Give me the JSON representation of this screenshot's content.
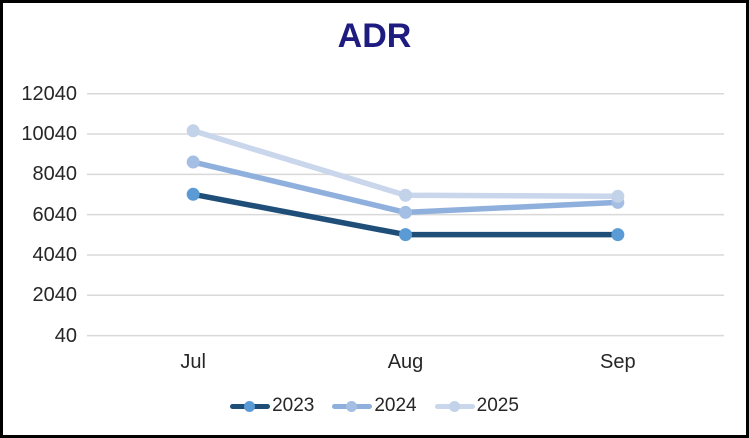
{
  "chart_data": {
    "type": "line",
    "title": "ADR",
    "title_color": "#1F1C80",
    "categories": [
      "Jul",
      "Aug",
      "Sep"
    ],
    "series": [
      {
        "name": "2023",
        "values": [
          7050,
          5050,
          5050
        ],
        "line_color": "#1F4E79",
        "marker_color": "#5B9BD5"
      },
      {
        "name": "2024",
        "values": [
          8650,
          6150,
          6650
        ],
        "line_color": "#8FB0DC",
        "marker_color": "#A4BFE3"
      },
      {
        "name": "2025",
        "values": [
          10200,
          7000,
          6950
        ],
        "line_color": "#C9D6EC",
        "marker_color": "#C2D2E9"
      }
    ],
    "yticks": [
      40,
      2040,
      4040,
      6040,
      8040,
      10040,
      12040
    ],
    "ylim": [
      40,
      12040
    ],
    "xlabel": "",
    "ylabel": "",
    "grid": "horizontal-only",
    "gridline_color": "#D9D9D9",
    "tick_label_color": "#262626",
    "legend_position": "bottom"
  }
}
